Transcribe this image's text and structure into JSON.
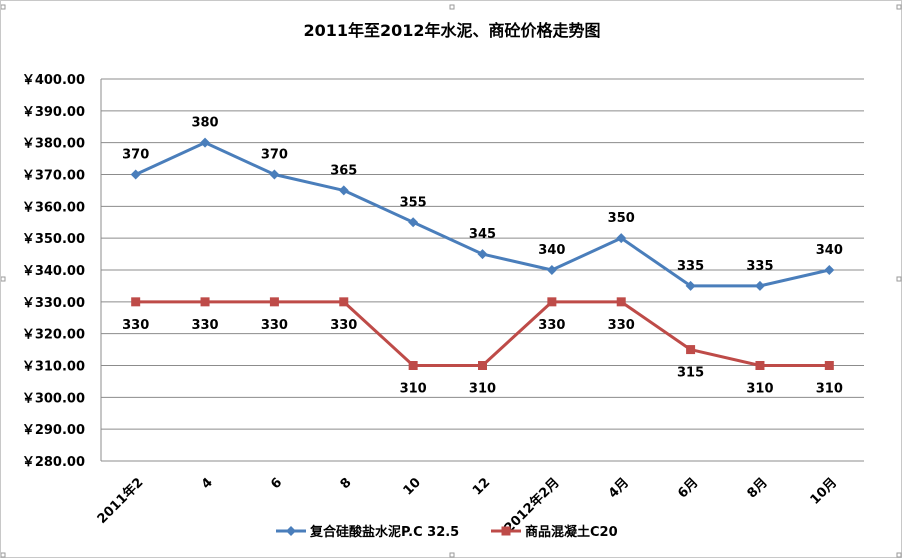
{
  "chart_data": {
    "type": "line",
    "title": "2011年至2012年水泥、商砼价格走势图",
    "categories": [
      "2011年2",
      "4",
      "6",
      "8",
      "10",
      "12",
      "2012年2月",
      "4月",
      "6月",
      "8月",
      "10月"
    ],
    "ylim": [
      280,
      400
    ],
    "yticks": [
      400,
      390,
      380,
      370,
      360,
      350,
      340,
      330,
      320,
      310,
      300,
      290,
      280
    ],
    "ytick_labels": [
      "￥400.00",
      "￥390.00",
      "￥380.00",
      "￥370.00",
      "￥360.00",
      "￥350.00",
      "￥340.00",
      "￥330.00",
      "￥320.00",
      "￥310.00",
      "￥300.00",
      "￥290.00",
      "￥280.00"
    ],
    "grid": true,
    "legend_position": "bottom",
    "series": [
      {
        "name": "复合硅酸盐水泥P.C 32.5",
        "color": "#4a7ebb",
        "marker": "diamond",
        "label_position": "above",
        "values": [
          370,
          380,
          370,
          365,
          355,
          345,
          340,
          350,
          335,
          335,
          340
        ]
      },
      {
        "name": "商品混凝土C20",
        "color": "#be4b48",
        "marker": "square",
        "label_position": "below",
        "values": [
          330,
          330,
          330,
          330,
          310,
          310,
          330,
          330,
          315,
          310,
          310
        ]
      }
    ]
  }
}
